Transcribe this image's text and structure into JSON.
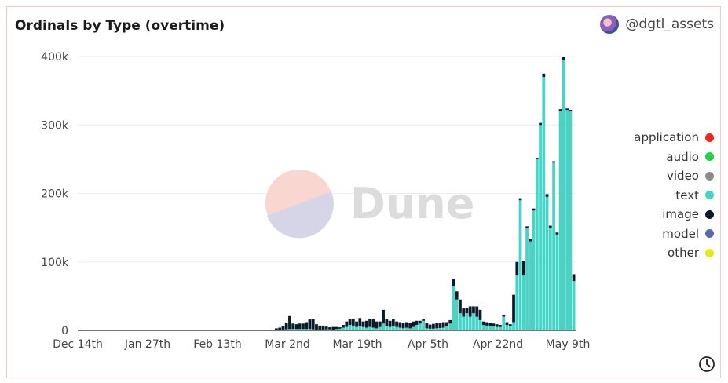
{
  "header": {
    "title": "Ordinals by Type (overtime)",
    "author": "@dgtl_assets"
  },
  "watermark": {
    "text": "Dune"
  },
  "colors": {
    "application": "#f5221b",
    "audio": "#1fd243",
    "video": "#8c8c8c",
    "text": "#45d4c5",
    "image": "#0c1b2a",
    "model": "#5b67b2",
    "other": "#e1ea1b"
  },
  "chart_data": {
    "type": "bar",
    "stacked": true,
    "title": "Ordinals by Type (overtime)",
    "x_tick_labels": [
      "Dec 14th",
      "Jan 27th",
      "Feb 13th",
      "Mar 2nd",
      "Mar 19th",
      "Apr 5th",
      "Apr 22nd",
      "May 9th"
    ],
    "y_tick_labels": [
      "0",
      "100k",
      "200k",
      "300k",
      "400k"
    ],
    "ylim": [
      0,
      400000
    ],
    "grid": true,
    "legend_position": "right",
    "legend": [
      "application",
      "audio",
      "video",
      "text",
      "image",
      "model",
      "other"
    ],
    "series": [
      {
        "name": "text",
        "values": [
          0,
          0,
          0,
          0,
          0,
          0,
          0,
          0,
          0,
          0,
          0,
          0,
          0,
          0,
          0,
          0,
          0,
          0,
          0,
          0,
          0,
          0,
          0,
          0,
          0,
          0,
          0,
          0,
          0,
          0,
          0,
          0,
          0,
          0,
          0,
          0,
          0,
          0,
          0,
          0,
          0,
          0,
          0,
          0,
          0,
          0,
          0,
          0,
          0,
          0,
          0,
          0,
          0,
          0,
          0,
          0,
          0,
          0,
          0,
          1000,
          1000,
          1000,
          1500,
          2000,
          2000,
          2000,
          2000,
          2000,
          2000,
          2000,
          1500,
          1000,
          1000,
          1000,
          1500,
          1500,
          1000,
          2000,
          2500,
          4000,
          5000,
          8000,
          7000,
          5000,
          6000,
          5000,
          4000,
          5000,
          4000,
          3000,
          5000,
          10000,
          6000,
          5000,
          6000,
          5000,
          4000,
          3000,
          4000,
          3000,
          5000,
          8000,
          10000,
          14000,
          3000,
          2500,
          2500,
          3000,
          3500,
          4000,
          6000,
          10000,
          65000,
          45000,
          25000,
          20000,
          25000,
          20000,
          25000,
          20000,
          15000,
          8000,
          7000,
          6000,
          6000,
          5000,
          5000,
          20000,
          8000,
          6000,
          12000,
          80000,
          190000,
          80000,
          150000,
          130000,
          175000,
          250000,
          300000,
          370000,
          195000,
          150000,
          245000,
          140000,
          320000,
          395000,
          322000,
          320000,
          72000
        ]
      },
      {
        "name": "image",
        "values": [
          400,
          300,
          300,
          300,
          300,
          300,
          300,
          300,
          300,
          300,
          300,
          300,
          300,
          300,
          300,
          300,
          300,
          300,
          300,
          300,
          300,
          300,
          300,
          300,
          300,
          300,
          300,
          300,
          300,
          300,
          300,
          300,
          300,
          300,
          300,
          300,
          300,
          300,
          300,
          300,
          300,
          300,
          300,
          300,
          300,
          300,
          300,
          300,
          300,
          300,
          300,
          300,
          300,
          300,
          300,
          300,
          300,
          300,
          300,
          2000,
          3000,
          5000,
          10000,
          20000,
          8000,
          7000,
          8000,
          8000,
          10000,
          14000,
          15000,
          8000,
          6000,
          6000,
          4000,
          3000,
          4000,
          3000,
          2000,
          4000,
          8000,
          8000,
          10000,
          8000,
          12000,
          8000,
          10000,
          12000,
          12000,
          10000,
          8000,
          20000,
          10000,
          9000,
          10000,
          8000,
          8000,
          8000,
          8000,
          8000,
          8000,
          6000,
          4000,
          2000,
          8000,
          6000,
          7000,
          8000,
          8000,
          8000,
          6000,
          5000,
          10000,
          12000,
          20000,
          12000,
          8000,
          15000,
          10000,
          15000,
          15000,
          5000,
          5000,
          5000,
          4000,
          4000,
          3000,
          3000,
          4000,
          3000,
          40000,
          20000,
          3000,
          22000,
          2000,
          3000,
          3000,
          2000,
          3000,
          5000,
          4000,
          3000,
          2000,
          3000,
          3000,
          4000,
          2000,
          2000,
          10000
        ]
      },
      {
        "name": "application",
        "values": [
          0,
          0,
          0,
          0,
          0,
          0,
          0,
          0,
          0,
          0,
          0,
          0,
          0,
          0,
          0,
          0,
          0,
          0,
          0,
          0,
          0,
          0,
          0,
          0,
          0,
          0,
          0,
          0,
          0,
          0,
          0,
          0,
          0,
          0,
          0,
          0,
          0,
          0,
          0,
          0,
          0,
          0,
          0,
          0,
          0,
          0,
          0,
          0,
          0,
          0,
          0,
          0,
          0,
          0,
          0,
          0,
          0,
          0,
          0,
          0,
          0,
          0,
          0,
          0,
          0,
          0,
          0,
          0,
          0,
          0,
          0,
          0,
          0,
          0,
          0,
          0,
          0,
          0,
          0,
          0,
          0,
          0,
          0,
          0,
          0,
          0,
          0,
          0,
          0,
          0,
          0,
          0,
          0,
          0,
          0,
          0,
          0,
          0,
          0,
          0,
          0,
          0,
          0,
          0,
          0,
          0,
          0,
          0,
          0,
          0,
          0,
          0,
          0,
          0,
          0,
          0,
          0,
          0,
          0,
          0,
          0,
          0,
          0,
          0,
          0,
          0,
          0,
          0,
          0,
          0,
          0,
          0,
          0,
          0,
          0,
          0,
          0,
          0,
          0,
          0,
          0,
          0,
          0,
          0,
          0,
          0,
          0,
          0,
          0,
          0,
          0,
          0,
          0,
          0
        ]
      },
      {
        "name": "other",
        "values": [
          0,
          0,
          0,
          0,
          0,
          0,
          0,
          0,
          0,
          0,
          0,
          0,
          0,
          0,
          0,
          0,
          0,
          0,
          0,
          0,
          0,
          0,
          0,
          0,
          0,
          0,
          0,
          0,
          0,
          0,
          0,
          0,
          0,
          0,
          0,
          0,
          0,
          0,
          0,
          0,
          0,
          0,
          0,
          0,
          0,
          0,
          0,
          0,
          0,
          0,
          0,
          0,
          0,
          0,
          0,
          0,
          0,
          0,
          0,
          0,
          0,
          0,
          0,
          0,
          0,
          0,
          0,
          0,
          0,
          0,
          0,
          0,
          0,
          0,
          0,
          0,
          0,
          0,
          0,
          0,
          0,
          0,
          0,
          0,
          0,
          0,
          0,
          0,
          0,
          0,
          0,
          0,
          0,
          0,
          0,
          0,
          0,
          0,
          0,
          0,
          0,
          0,
          0,
          0,
          0,
          0,
          0,
          0,
          0,
          0,
          0,
          0,
          0,
          0,
          0,
          0,
          0,
          0,
          0,
          0,
          0,
          0,
          0,
          0,
          0,
          0,
          0,
          0,
          0,
          0,
          0,
          0,
          0,
          0,
          0,
          0,
          0,
          0,
          0,
          0,
          0,
          0,
          0,
          0,
          0,
          0,
          0,
          0,
          0,
          0,
          2000,
          0,
          0,
          0
        ]
      }
    ]
  }
}
